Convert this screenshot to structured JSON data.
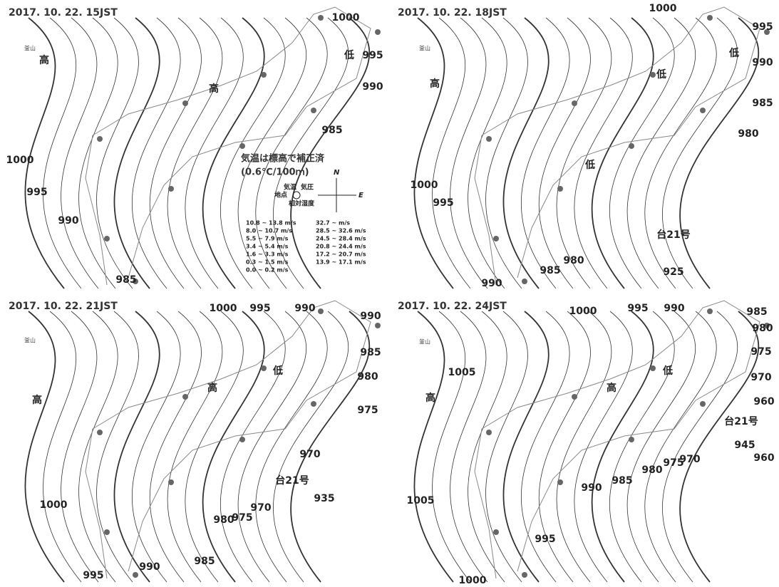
{
  "panels": [
    {
      "title": "2017. 10. 22. 15JST",
      "labels": [
        "1000",
        "995",
        "990",
        "985",
        "1000",
        "995",
        "990",
        "985",
        "高",
        "高",
        "低",
        "釜山"
      ]
    },
    {
      "title": "2017. 10. 22. 18JST",
      "labels": [
        "1000",
        "995",
        "990",
        "985",
        "980",
        "高",
        "低",
        "低",
        "低",
        "1000",
        "995",
        "985",
        "980",
        "990",
        "台21号",
        "925",
        "釜山"
      ]
    },
    {
      "title": "2017. 10. 22. 21JST",
      "labels": [
        "1000",
        "995",
        "990",
        "990",
        "985",
        "980",
        "975",
        "970",
        "高",
        "高",
        "低",
        "1000",
        "台21号",
        "935",
        "970",
        "975",
        "980",
        "990",
        "985",
        "995",
        "釜山"
      ]
    },
    {
      "title": "2017. 10. 22. 24JST",
      "labels": [
        "1000",
        "995",
        "990",
        "985",
        "980",
        "975",
        "970",
        "960",
        "960",
        "1005",
        "高",
        "高",
        "低",
        "台21号",
        "945",
        "970",
        "975",
        "980",
        "985",
        "990",
        "1005",
        "995",
        "1000",
        "釜山"
      ]
    }
  ],
  "legend": {
    "note1": "気温は標高で補正済",
    "note2": "(0.6℃/100ｍ)",
    "north": "N",
    "east": "E",
    "temp": "気温",
    "pressure": "気圧",
    "station": "地点",
    "humidity": "相対湿度",
    "wind_left": [
      "10.8 ~ 13.8 m/s",
      "8.0 ~ 10.7 m/s",
      "5.5 ~ 7.9 m/s",
      "3.4 ~ 5.4 m/s",
      "1.6 ~ 3.3 m/s",
      "0.3 ~ 1.5 m/s",
      "0.0 ~ 0.2 m/s"
    ],
    "wind_right": [
      "32.7 ~      m/s",
      "28.5 ~ 32.6 m/s",
      "24.5 ~ 28.4 m/s",
      "20.8 ~ 24.4 m/s",
      "17.2 ~ 20.7 m/s",
      "13.9 ~ 17.1 m/s"
    ]
  }
}
